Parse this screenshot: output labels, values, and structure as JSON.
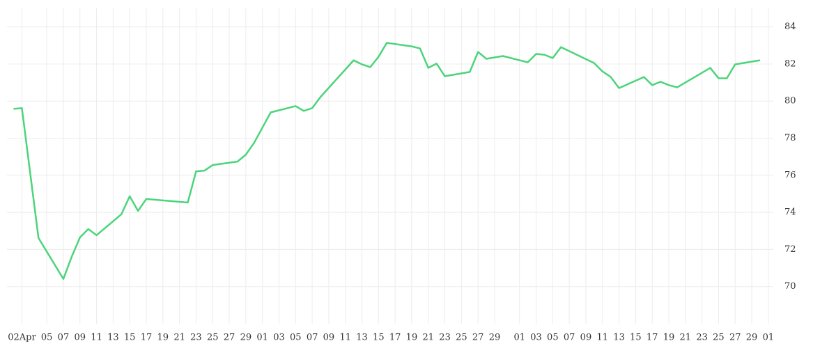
{
  "chart_data": {
    "type": "line",
    "x": [
      0,
      1,
      3,
      6,
      7,
      8,
      9,
      10,
      13,
      14,
      15,
      16,
      21,
      22,
      23,
      24,
      27,
      28,
      29,
      31,
      34,
      35,
      36,
      37,
      41,
      42,
      43,
      44,
      45,
      48,
      49,
      50,
      51,
      52,
      55,
      56,
      57,
      59,
      62,
      63,
      64,
      65,
      66,
      70,
      71,
      72,
      73,
      76,
      77,
      78,
      79,
      80,
      84,
      85,
      86,
      87,
      90
    ],
    "series": [
      {
        "color": "#4cd47b",
        "values": [
          79.58,
          79.62,
          72.62,
          70.41,
          71.6,
          72.65,
          73.1,
          72.77,
          73.9,
          74.87,
          74.08,
          74.72,
          74.53,
          76.21,
          76.25,
          76.55,
          76.74,
          77.11,
          77.75,
          79.39,
          79.73,
          79.47,
          79.62,
          80.22,
          82.2,
          81.98,
          81.83,
          82.39,
          83.14,
          82.95,
          82.84,
          81.79,
          82.02,
          81.34,
          81.57,
          82.65,
          82.28,
          82.43,
          82.09,
          82.54,
          82.5,
          82.32,
          82.91,
          82.05,
          81.6,
          81.3,
          80.7,
          81.3,
          80.86,
          81.04,
          80.86,
          80.74,
          81.79,
          81.23,
          81.23,
          81.98,
          82.2
        ]
      }
    ],
    "xlim": [
      -0.8,
      91.6
    ],
    "xticks": [
      {
        "value": 1,
        "label": "02Apr"
      },
      {
        "value": 4,
        "label": "05"
      },
      {
        "value": 6,
        "label": "07"
      },
      {
        "value": 8,
        "label": "09"
      },
      {
        "value": 10,
        "label": "11"
      },
      {
        "value": 12,
        "label": "13"
      },
      {
        "value": 14,
        "label": "15"
      },
      {
        "value": 16,
        "label": "17"
      },
      {
        "value": 18,
        "label": "19"
      },
      {
        "value": 20,
        "label": "21"
      },
      {
        "value": 22,
        "label": "23"
      },
      {
        "value": 24,
        "label": "25"
      },
      {
        "value": 26,
        "label": "27"
      },
      {
        "value": 28,
        "label": "29"
      },
      {
        "value": 30,
        "label": "01"
      },
      {
        "value": 32,
        "label": "03"
      },
      {
        "value": 34,
        "label": "05"
      },
      {
        "value": 36,
        "label": "07"
      },
      {
        "value": 38,
        "label": "09"
      },
      {
        "value": 40,
        "label": "11"
      },
      {
        "value": 42,
        "label": "13"
      },
      {
        "value": 44,
        "label": "15"
      },
      {
        "value": 46,
        "label": "17"
      },
      {
        "value": 48,
        "label": "19"
      },
      {
        "value": 50,
        "label": "21"
      },
      {
        "value": 52,
        "label": "23"
      },
      {
        "value": 54,
        "label": "25"
      },
      {
        "value": 56,
        "label": "27"
      },
      {
        "value": 58,
        "label": "29"
      },
      {
        "value": 61,
        "label": "01"
      },
      {
        "value": 63,
        "label": "03"
      },
      {
        "value": 65,
        "label": "05"
      },
      {
        "value": 67,
        "label": "07"
      },
      {
        "value": 69,
        "label": "09"
      },
      {
        "value": 71,
        "label": "11"
      },
      {
        "value": 73,
        "label": "13"
      },
      {
        "value": 75,
        "label": "15"
      },
      {
        "value": 77,
        "label": "17"
      },
      {
        "value": 79,
        "label": "19"
      },
      {
        "value": 81,
        "label": "21"
      },
      {
        "value": 83,
        "label": "23"
      },
      {
        "value": 85,
        "label": "25"
      },
      {
        "value": 87,
        "label": "27"
      },
      {
        "value": 89,
        "label": "29"
      },
      {
        "value": 91,
        "label": "01"
      }
    ],
    "ylim": [
      68,
      85
    ],
    "yticks": [
      70,
      72,
      74,
      76,
      78,
      80,
      82,
      84
    ],
    "grid": true
  }
}
